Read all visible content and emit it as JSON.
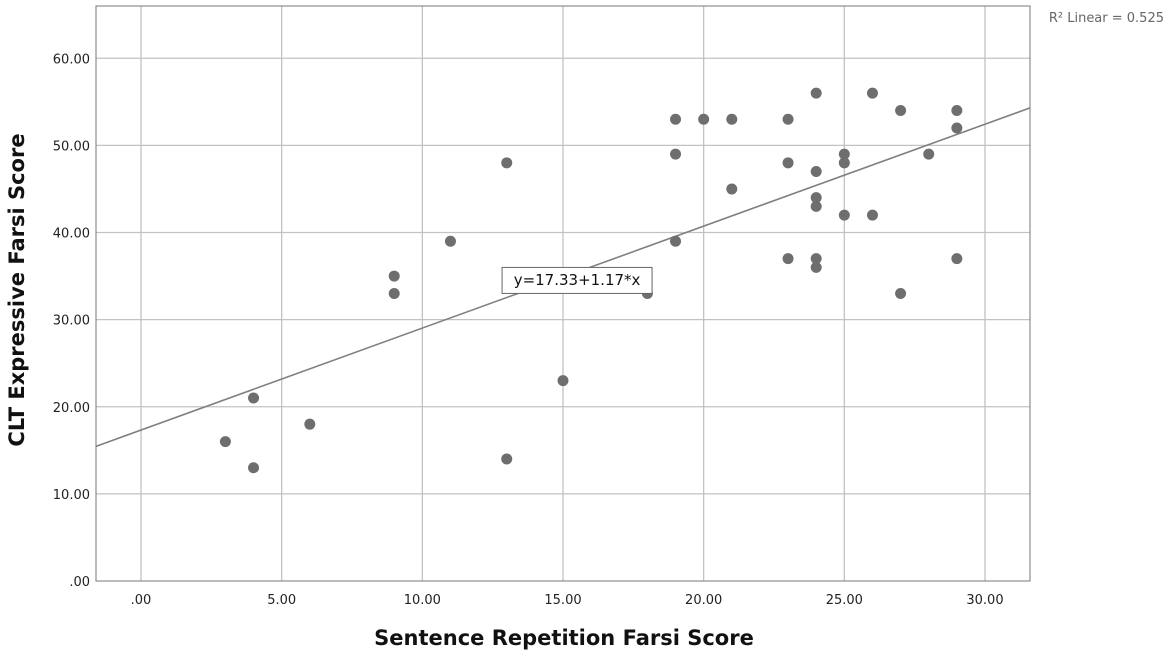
{
  "chart_data": {
    "type": "scatter",
    "title": "",
    "xlabel": "Sentence Repetition Farsi Score",
    "ylabel": "CLT Expressive Farsi Score",
    "xlim": [
      -1.6,
      31.6
    ],
    "ylim": [
      0,
      66
    ],
    "x_ticks": [
      0,
      5,
      10,
      15,
      20,
      25,
      30
    ],
    "x_tick_labels": [
      ".00",
      "5.00",
      "10.00",
      "15.00",
      "20.00",
      "25.00",
      "30.00"
    ],
    "y_ticks": [
      0,
      10,
      20,
      30,
      40,
      50,
      60
    ],
    "y_tick_labels": [
      ".00",
      "10.00",
      "20.00",
      "30.00",
      "40.00",
      "50.00",
      "60.00"
    ],
    "grid": true,
    "points": [
      {
        "x": 3,
        "y": 16
      },
      {
        "x": 4,
        "y": 21
      },
      {
        "x": 4,
        "y": 13
      },
      {
        "x": 6,
        "y": 18
      },
      {
        "x": 9,
        "y": 35
      },
      {
        "x": 9,
        "y": 33
      },
      {
        "x": 11,
        "y": 39
      },
      {
        "x": 13,
        "y": 48
      },
      {
        "x": 13,
        "y": 14
      },
      {
        "x": 15,
        "y": 23
      },
      {
        "x": 18,
        "y": 33
      },
      {
        "x": 19,
        "y": 53
      },
      {
        "x": 19,
        "y": 49
      },
      {
        "x": 19,
        "y": 39
      },
      {
        "x": 20,
        "y": 53
      },
      {
        "x": 21,
        "y": 53
      },
      {
        "x": 21,
        "y": 45
      },
      {
        "x": 23,
        "y": 53
      },
      {
        "x": 23,
        "y": 48
      },
      {
        "x": 23,
        "y": 37
      },
      {
        "x": 24,
        "y": 56
      },
      {
        "x": 24,
        "y": 47
      },
      {
        "x": 24,
        "y": 44
      },
      {
        "x": 24,
        "y": 43
      },
      {
        "x": 24,
        "y": 37
      },
      {
        "x": 24,
        "y": 36
      },
      {
        "x": 25,
        "y": 49
      },
      {
        "x": 25,
        "y": 48
      },
      {
        "x": 25,
        "y": 42
      },
      {
        "x": 26,
        "y": 56
      },
      {
        "x": 26,
        "y": 42
      },
      {
        "x": 27,
        "y": 54
      },
      {
        "x": 27,
        "y": 33
      },
      {
        "x": 28,
        "y": 49
      },
      {
        "x": 29,
        "y": 54
      },
      {
        "x": 29,
        "y": 52
      },
      {
        "x": 29,
        "y": 37
      }
    ],
    "fit_line": {
      "intercept": 17.33,
      "slope": 1.17
    },
    "fit_label": "y=17.33+1.17*x",
    "fit_label_at": {
      "x": 15.5,
      "y": 34.5
    },
    "r2_label": "R² Linear = 0.525",
    "colors": {
      "points": "#6e6e6e",
      "fit_line": "#808080",
      "grid": "#c2c2c2",
      "axis": "#777777"
    }
  }
}
